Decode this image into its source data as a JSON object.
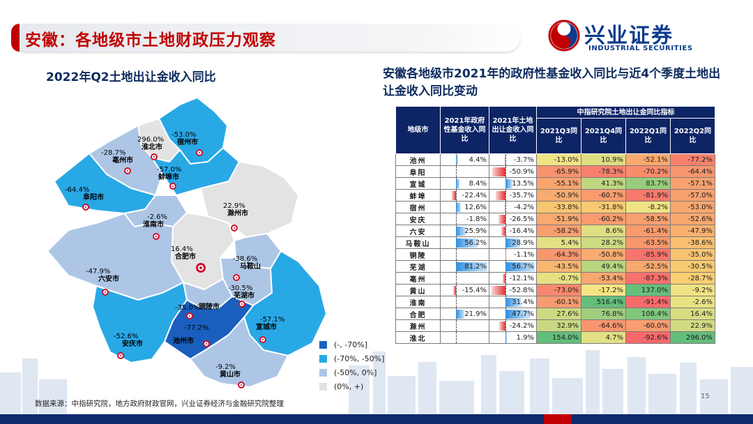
{
  "header": {
    "title": "安徽：各地级市土地财政压力观察",
    "logo_cn": "兴业证券",
    "logo_en": "INDUSTRIAL SECURITIES"
  },
  "left": {
    "title": "2022年Q2土地出让金收入同比"
  },
  "map": {
    "cities": [
      {
        "name": "宿州市",
        "value": "-53.0%",
        "class": "c2"
      },
      {
        "name": "淮北市",
        "value": "296.0%",
        "class": "c4"
      },
      {
        "name": "亳州市",
        "value": "-28.7%",
        "class": "c3"
      },
      {
        "name": "蚌埠市",
        "value": "-57.0%",
        "class": "c2"
      },
      {
        "name": "阜阳市",
        "value": "-64.4%",
        "class": "c2"
      },
      {
        "name": "淮南市",
        "value": "-2.6%",
        "class": "c3"
      },
      {
        "name": "滁州市",
        "value": "22.9%",
        "class": "c4"
      },
      {
        "name": "合肥市",
        "value": "16.4%",
        "class": "c4"
      },
      {
        "name": "马鞍山",
        "value": "-38.6%",
        "class": "c3"
      },
      {
        "name": "六安市",
        "value": "-47.9%",
        "class": "c3"
      },
      {
        "name": "芜湖市",
        "value": "-30.5%",
        "class": "c3"
      },
      {
        "name": "铜陵市",
        "value": "-35.0%",
        "class": "c3"
      },
      {
        "name": "宣城市",
        "value": "-57.1%",
        "class": "c2"
      },
      {
        "name": "安庆市",
        "value": "-52.6%",
        "class": "c2"
      },
      {
        "name": "池州市",
        "value": "-77.2%",
        "class": "c1"
      },
      {
        "name": "黄山市",
        "value": "-9.2%",
        "class": "c3"
      }
    ],
    "legend": [
      {
        "label": "(-, -70%]",
        "color": "#1565c0"
      },
      {
        "label": "(-70%, -50%]",
        "color": "#29a8e6"
      },
      {
        "label": "(-50%, 0%]",
        "color": "#aec7e8"
      },
      {
        "label": "(0%, +)",
        "color": "#e3e3e3"
      }
    ],
    "colors": {
      "c1": "#1a5fbe",
      "c2": "#29a8e6",
      "c3": "#adc6e6",
      "c4": "#e3e3e3"
    }
  },
  "right": {
    "title": "安徽各地级市2021年的政府性基金收入同比与近4个季度土地出让金收入同比变动"
  },
  "table": {
    "headers": {
      "city": "地级市",
      "fund": "2021年政府性基金收入同比",
      "land": "2021年土地出让金收入同比",
      "group": "中指研究院土地出让金同比指标",
      "q": [
        "2021Q3同比",
        "2021Q4同比",
        "2022Q1同比",
        "2022Q2同比"
      ]
    },
    "rows": [
      {
        "city": "池州",
        "fund": "4.4%",
        "land": "-3.7%",
        "q": [
          "-13.0%",
          "10.9%",
          "-52.1%",
          "-77.2%"
        ]
      },
      {
        "city": "阜阳",
        "fund": "",
        "land": "-50.9%",
        "q": [
          "-65.9%",
          "-78.3%",
          "-70.2%",
          "-64.4%"
        ]
      },
      {
        "city": "宣城",
        "fund": "8.4%",
        "land": "13.5%",
        "q": [
          "-55.1%",
          "41.3%",
          "83.7%",
          "-57.1%"
        ]
      },
      {
        "city": "蚌埠",
        "fund": "-22.4%",
        "land": "-35.7%",
        "q": [
          "-50.9%",
          "-60.7%",
          "-81.9%",
          "-57.0%"
        ]
      },
      {
        "city": "宿州",
        "fund": "12.6%",
        "land": "-4.2%",
        "q": [
          "-33.8%",
          "-31.8%",
          "-8.2%",
          "-53.0%"
        ]
      },
      {
        "city": "安庆",
        "fund": "-1.8%",
        "land": "-26.5%",
        "q": [
          "-51.9%",
          "-60.2%",
          "-58.5%",
          "-52.6%"
        ]
      },
      {
        "city": "六安",
        "fund": "25.9%",
        "land": "-16.4%",
        "q": [
          "-58.2%",
          "8.6%",
          "-61.4%",
          "-47.9%"
        ]
      },
      {
        "city": "马鞍山",
        "fund": "56.2%",
        "land": "28.9%",
        "q": [
          "5.4%",
          "28.2%",
          "-63.5%",
          "-38.6%"
        ]
      },
      {
        "city": "铜陵",
        "fund": "",
        "land": "-1.1%",
        "q": [
          "-64.3%",
          "-50.8%",
          "-85.9%",
          "-35.0%"
        ]
      },
      {
        "city": "芜湖",
        "fund": "81.2%",
        "land": "56.7%",
        "q": [
          "-43.5%",
          "49.4%",
          "-52.5%",
          "-30.5%"
        ]
      },
      {
        "city": "亳州",
        "fund": "",
        "land": "-12.1%",
        "q": [
          "-0.7%",
          "-53.4%",
          "-87.3%",
          "-28.7%"
        ]
      },
      {
        "city": "黄山",
        "fund": "-15.4%",
        "land": "-52.8%",
        "q": [
          "-73.0%",
          "-17.2%",
          "137.0%",
          "-9.2%"
        ]
      },
      {
        "city": "淮南",
        "fund": "",
        "land": "31.4%",
        "q": [
          "-60.1%",
          "516.4%",
          "-91.4%",
          "-2.6%"
        ]
      },
      {
        "city": "合肥",
        "fund": "21.9%",
        "land": "47.7%",
        "q": [
          "27.6%",
          "76.8%",
          "108.4%",
          "16.4%"
        ]
      },
      {
        "city": "滁州",
        "fund": "",
        "land": "-24.2%",
        "q": [
          "32.9%",
          "-64.6%",
          "-60.0%",
          "22.9%"
        ]
      },
      {
        "city": "淮北",
        "fund": "",
        "land": "1.9%",
        "q": [
          "154.0%",
          "4.7%",
          "-92.6%",
          "296.0%"
        ]
      }
    ]
  },
  "footer": {
    "source": "数据来源：中指研究院，地方政府财政官网，兴业证券经济与金融研究院整理",
    "page": "15"
  }
}
